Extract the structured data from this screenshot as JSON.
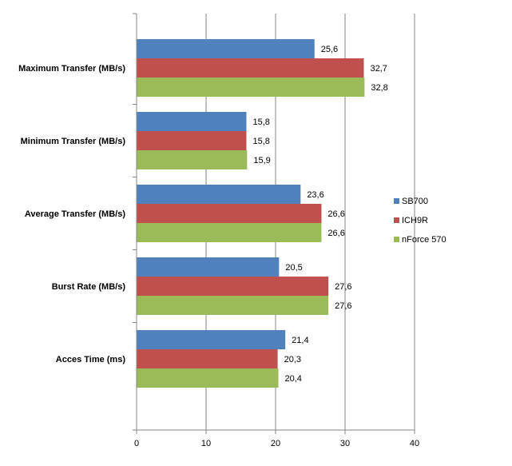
{
  "chart_data": {
    "type": "bar",
    "orientation": "horizontal",
    "categories": [
      "Maximum Transfer  (MB/s)",
      "Minimum Transfer  (MB/s)",
      "Average Transfer  (MB/s)",
      "Burst Rate  (MB/s)",
      "Acces Time  (ms)"
    ],
    "series": [
      {
        "name": "SB700",
        "color": "#4f81bd",
        "values": [
          25.6,
          15.8,
          23.6,
          20.5,
          21.4
        ],
        "labels": [
          "25,6",
          "15,8",
          "23,6",
          "20,5",
          "21,4"
        ]
      },
      {
        "name": "ICH9R",
        "color": "#c0504d",
        "values": [
          32.7,
          15.8,
          26.6,
          27.6,
          20.3
        ],
        "labels": [
          "32,7",
          "15,8",
          "26,6",
          "27,6",
          "20,3"
        ]
      },
      {
        "name": "nForce 570",
        "color": "#9bbb59",
        "values": [
          32.8,
          15.9,
          26.6,
          27.6,
          20.4
        ],
        "labels": [
          "32,8",
          "15,9",
          "26,6",
          "27,6",
          "20,4"
        ]
      }
    ],
    "xlim": [
      0,
      40
    ],
    "xticks": [
      "0",
      "10",
      "20",
      "30",
      "40"
    ],
    "xtick_values": [
      0,
      10,
      20,
      30,
      40
    ],
    "grid": "vertical",
    "legend_position": "right",
    "title": "",
    "xlabel": "",
    "ylabel": ""
  }
}
